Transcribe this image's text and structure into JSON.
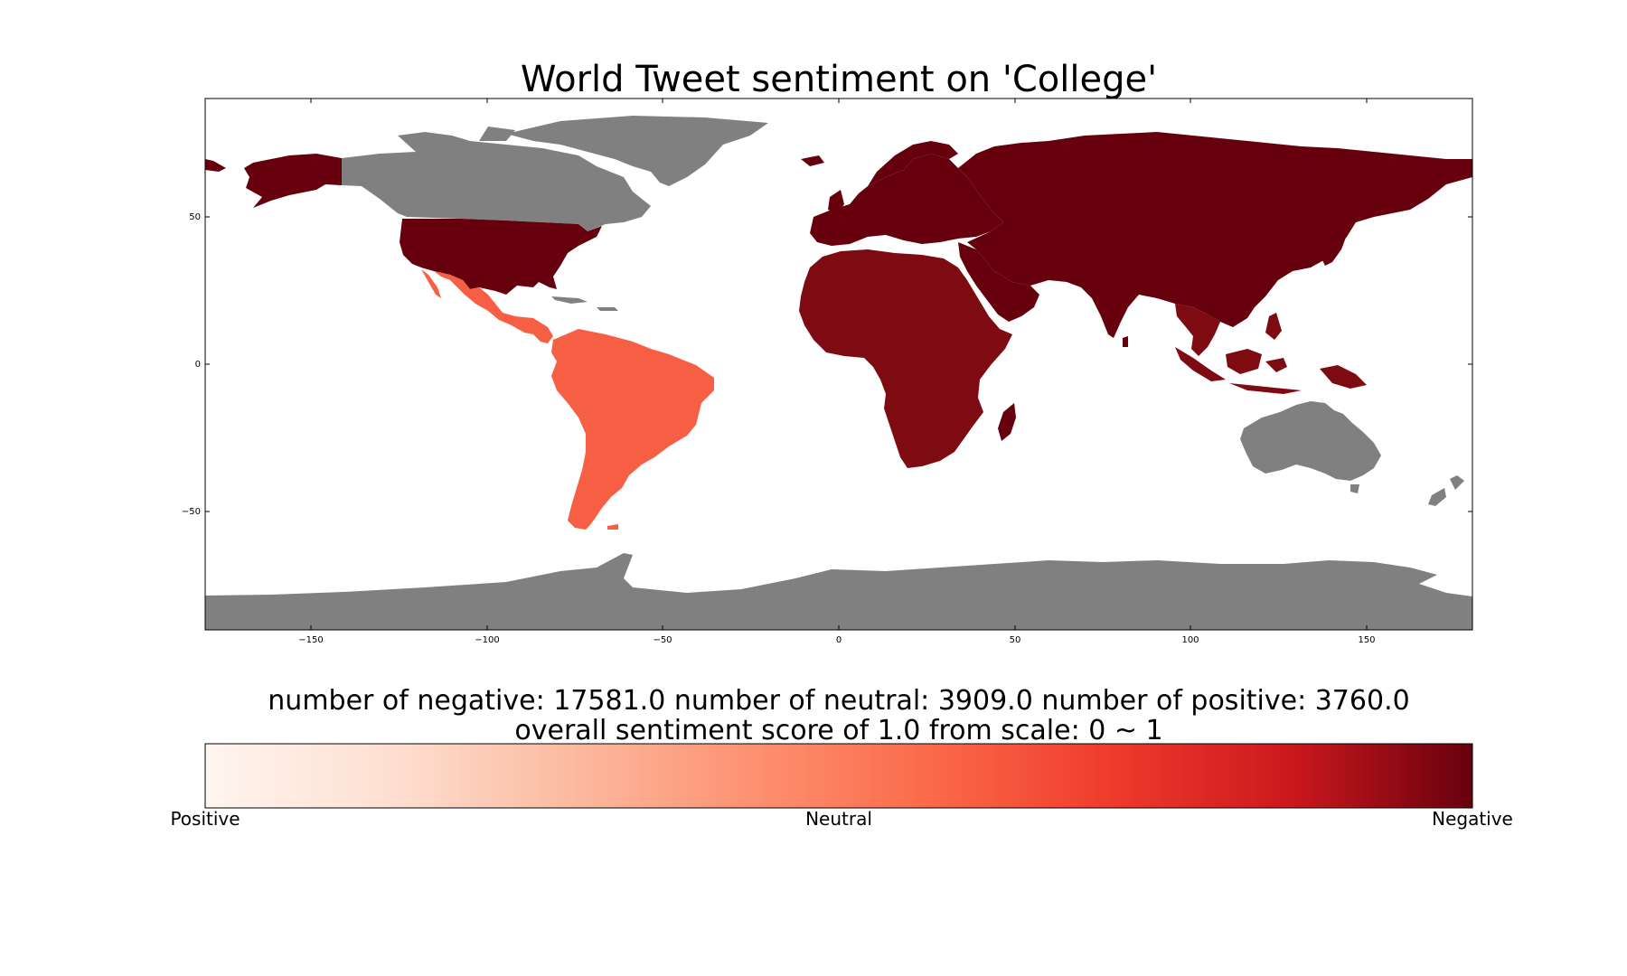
{
  "title": "World Tweet sentiment on 'College'",
  "colors": {
    "negative_dark": "#67000d",
    "negative": "#7f0b12",
    "neutral_orange": "#f65f43",
    "no_data_gray": "#808080",
    "ocean": "#ffffff"
  },
  "map": {
    "projection": "equirectangular",
    "xlim": [
      -180,
      180
    ],
    "ylim": [
      -90,
      90
    ],
    "x_ticks": [
      -150,
      -100,
      -50,
      0,
      50,
      100,
      150
    ],
    "y_ticks": [
      50,
      0,
      -50
    ],
    "x_tick_labels": [
      "−150",
      "−100",
      "−50",
      "0",
      "50",
      "100",
      "150"
    ],
    "y_tick_labels": [
      "50",
      "0",
      "−50"
    ],
    "regions": [
      {
        "name": "United States",
        "sentiment": "negative",
        "color": "#67000d"
      },
      {
        "name": "Alaska",
        "sentiment": "negative",
        "color": "#67000d"
      },
      {
        "name": "Canada",
        "sentiment": "no data",
        "color": "#808080"
      },
      {
        "name": "Greenland",
        "sentiment": "no data",
        "color": "#808080"
      },
      {
        "name": "Mexico / Central America",
        "sentiment": "neutral",
        "color": "#f65f43"
      },
      {
        "name": "South America",
        "sentiment": "neutral",
        "color": "#f65f43"
      },
      {
        "name": "Europe",
        "sentiment": "negative",
        "color": "#67000d"
      },
      {
        "name": "Russia / Asia",
        "sentiment": "negative",
        "color": "#67000d"
      },
      {
        "name": "Middle East",
        "sentiment": "negative",
        "color": "#67000d"
      },
      {
        "name": "Africa",
        "sentiment": "negative",
        "color": "#7f0b12"
      },
      {
        "name": "Southeast Asia",
        "sentiment": "negative",
        "color": "#7f0b12"
      },
      {
        "name": "Australia",
        "sentiment": "no data",
        "color": "#808080"
      },
      {
        "name": "New Zealand",
        "sentiment": "no data",
        "color": "#808080"
      },
      {
        "name": "Antarctica",
        "sentiment": "no data",
        "color": "#808080"
      }
    ]
  },
  "stats": {
    "line1": "number of negative: 17581.0 number of neutral: 3909.0 number of positive: 3760.0",
    "line2": "overall sentiment score of 1.0 from scale: 0 ~ 1",
    "negative": 17581.0,
    "neutral": 3909.0,
    "positive": 3760.0,
    "score": 1.0
  },
  "colorbar": {
    "labels": [
      "Positive",
      "Neutral",
      "Negative"
    ],
    "stops": [
      "#fff5f0",
      "#fcbba1",
      "#fc9272",
      "#fb6a4a",
      "#ef3b2c",
      "#cb181d",
      "#a50f15",
      "#67000d"
    ]
  }
}
